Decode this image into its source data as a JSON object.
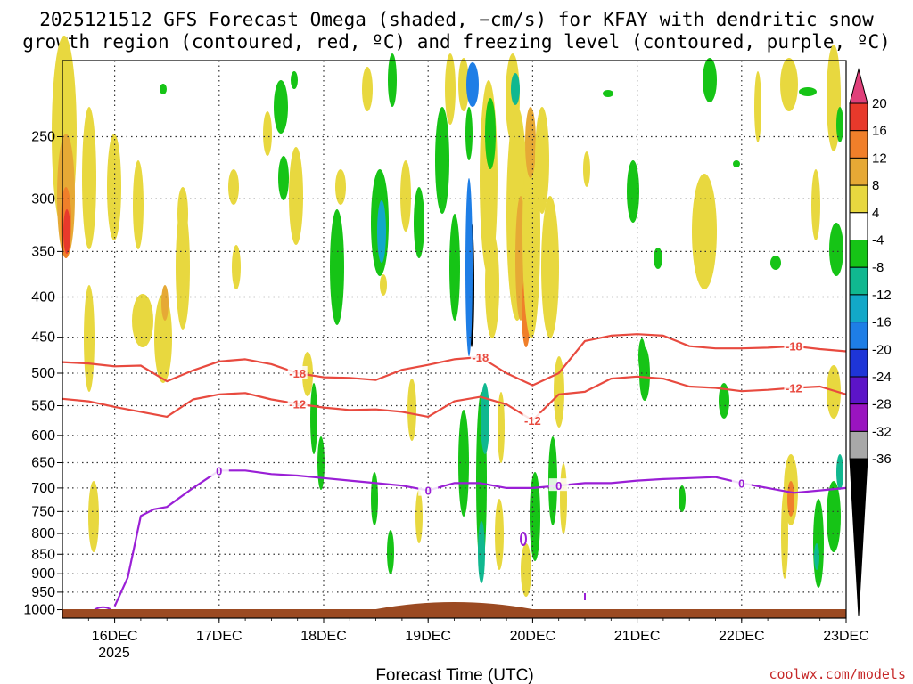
{
  "title_lines": [
    "2025121512 GFS Forecast Omega (shaded, −cm/s) for KFAY with dendritic snow",
    "growth region (contoured, red, ºC) and freezing level (contoured, purple, ºC)"
  ],
  "credit": "coolwx.com/models",
  "chart_data": {
    "type": "time-height contour (shaded omega with contour overlays)",
    "xlabel": "Forecast Time (UTC)",
    "xlim": [
      "2025-12-15T12:00Z",
      "2025-12-23T00:00Z"
    ],
    "x_ticks": [
      "16DEC",
      "17DEC",
      "18DEC",
      "19DEC",
      "20DEC",
      "21DEC",
      "22DEC",
      "23DEC"
    ],
    "x_tick_year": "2025",
    "ylabel": "",
    "y_scale": "log-pressure (inverted)",
    "ylim": [
      1025,
      200
    ],
    "y_ticks": [
      250,
      300,
      350,
      400,
      450,
      500,
      550,
      600,
      650,
      700,
      750,
      800,
      850,
      900,
      950,
      1000
    ],
    "grid": true,
    "colorbar": {
      "labels": [
        "20",
        "16",
        "12",
        "8",
        "4",
        "-4",
        "-8",
        "-12",
        "-16",
        "-20",
        "-24",
        "-28",
        "-32",
        "-36"
      ],
      "colors": [
        "#e0407a",
        "#e8392b",
        "#f07f2a",
        "#e6a935",
        "#e8d83f",
        "#ffffff",
        "#16c416",
        "#10b890",
        "#12a8c8",
        "#1e7ee6",
        "#1e35d8",
        "#5c14c8",
        "#9a14c0",
        "#a8a8a8",
        "#000000"
      ]
    },
    "contours": {
      "dendritic_minus18": {
        "label": "-18",
        "color": "#e84a3f",
        "x": [
          "2025-12-15T12Z",
          "2025-12-15T18Z",
          "2025-12-16T00Z",
          "2025-12-16T06Z",
          "2025-12-16T12Z",
          "2025-12-16T18Z",
          "2025-12-17T00Z",
          "2025-12-17T06Z",
          "2025-12-17T12Z",
          "2025-12-17T18Z",
          "2025-12-18T00Z",
          "2025-12-18T06Z",
          "2025-12-18T12Z",
          "2025-12-18T18Z",
          "2025-12-19T00Z",
          "2025-12-19T06Z",
          "2025-12-19T12Z",
          "2025-12-19T18Z",
          "2025-12-20T00Z",
          "2025-12-20T06Z",
          "2025-12-20T12Z",
          "2025-12-20T18Z",
          "2025-12-21T00Z",
          "2025-12-21T06Z",
          "2025-12-21T12Z",
          "2025-12-21T18Z",
          "2025-12-22T00Z",
          "2025-12-22T06Z",
          "2025-12-22T12Z",
          "2025-12-22T18Z",
          "2025-12-23T00Z"
        ],
        "pressure_hPa": [
          484,
          486,
          490,
          489,
          512,
          496,
          483,
          480,
          487,
          500,
          506,
          507,
          510,
          495,
          488,
          480,
          477,
          500,
          518,
          500,
          455,
          448,
          446,
          448,
          462,
          465,
          465,
          464,
          462,
          466,
          469
        ]
      },
      "dendritic_minus12": {
        "label": "-12",
        "color": "#e84a3f",
        "x": [
          "2025-12-15T12Z",
          "2025-12-15T18Z",
          "2025-12-16T00Z",
          "2025-12-16T06Z",
          "2025-12-16T12Z",
          "2025-12-16T18Z",
          "2025-12-17T00Z",
          "2025-12-17T06Z",
          "2025-12-17T12Z",
          "2025-12-17T18Z",
          "2025-12-18T00Z",
          "2025-12-18T06Z",
          "2025-12-18T12Z",
          "2025-12-18T18Z",
          "2025-12-19T00Z",
          "2025-12-19T06Z",
          "2025-12-19T12Z",
          "2025-12-19T18Z",
          "2025-12-20T00Z",
          "2025-12-20T06Z",
          "2025-12-20T12Z",
          "2025-12-20T18Z",
          "2025-12-21T00Z",
          "2025-12-21T06Z",
          "2025-12-21T12Z",
          "2025-12-21T18Z",
          "2025-12-22T00Z",
          "2025-12-22T06Z",
          "2025-12-22T12Z",
          "2025-12-22T18Z",
          "2025-12-23T00Z"
        ],
        "pressure_hPa": [
          539,
          543,
          552,
          560,
          568,
          540,
          532,
          530,
          540,
          547,
          553,
          557,
          556,
          560,
          568,
          543,
          536,
          548,
          574,
          532,
          528,
          508,
          505,
          508,
          520,
          522,
          527,
          525,
          522,
          520,
          532
        ]
      },
      "freezing_level_0": {
        "label": "0",
        "color": "#9a1fd6",
        "x": [
          "2025-12-16T00Z",
          "2025-12-16T03Z",
          "2025-12-16T06Z",
          "2025-12-16T09Z",
          "2025-12-16T12Z",
          "2025-12-16T18Z",
          "2025-12-17T00Z",
          "2025-12-17T06Z",
          "2025-12-17T12Z",
          "2025-12-17T18Z",
          "2025-12-18T00Z",
          "2025-12-18T06Z",
          "2025-12-18T12Z",
          "2025-12-18T18Z",
          "2025-12-19T00Z",
          "2025-12-19T06Z",
          "2025-12-19T12Z",
          "2025-12-19T18Z",
          "2025-12-20T00Z",
          "2025-12-20T06Z",
          "2025-12-20T12Z",
          "2025-12-20T18Z",
          "2025-12-21T00Z",
          "2025-12-21T06Z",
          "2025-12-21T12Z",
          "2025-12-21T18Z",
          "2025-12-22T00Z",
          "2025-12-22T06Z",
          "2025-12-22T12Z",
          "2025-12-22T18Z",
          "2025-12-23T00Z"
        ],
        "pressure_hPa": [
          990,
          910,
          760,
          745,
          740,
          700,
          665,
          665,
          672,
          675,
          680,
          685,
          690,
          695,
          705,
          690,
          690,
          700,
          700,
          695,
          690,
          690,
          685,
          682,
          680,
          678,
          690,
          700,
          710,
          705,
          700
        ]
      }
    },
    "ground_label": "surface (brown)"
  }
}
